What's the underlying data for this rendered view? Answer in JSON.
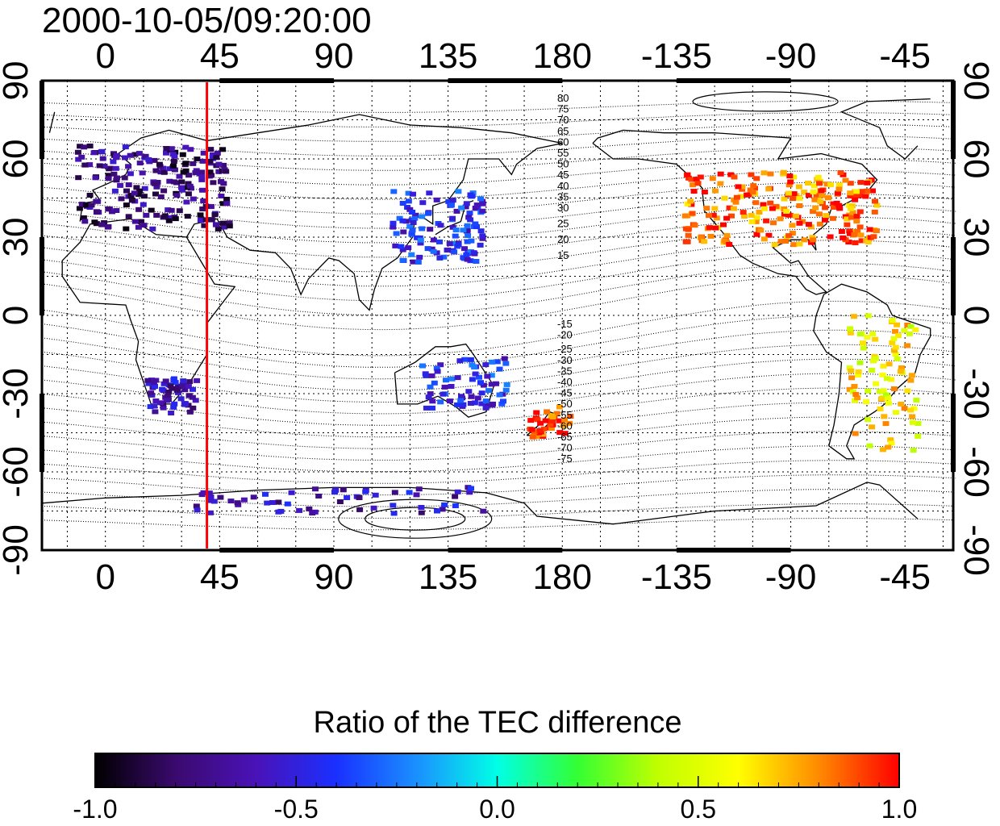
{
  "timestamp": "2000-10-05/09:20:00",
  "map": {
    "lon_ticks_top": [
      "0",
      "45",
      "90",
      "135",
      "180",
      "-135",
      "-90",
      "-45"
    ],
    "lon_ticks_bottom": [
      "0",
      "45",
      "90",
      "135",
      "180",
      "-135",
      "-90",
      "-45"
    ],
    "lat_ticks_left": [
      "90",
      "60",
      "30",
      "0",
      "-30",
      "-60",
      "-90"
    ],
    "lat_ticks_right": [
      "90",
      "60",
      "30",
      "0",
      "-30",
      "-60",
      "-90"
    ],
    "marker_longitude": 40,
    "marker_color": "#ff0000",
    "contour_labels_north": [
      "80",
      "75",
      "70",
      "65",
      "60",
      "55",
      "50",
      "45",
      "40",
      "35",
      "30",
      "25",
      "20",
      "15"
    ],
    "contour_labels_south": [
      "-15",
      "-20",
      "-25",
      "-30",
      "-35",
      "-40",
      "-45",
      "-50",
      "-55",
      "-60",
      "-65",
      "-70",
      "-75"
    ]
  },
  "colorbar": {
    "title": "Ratio of the TEC difference",
    "tick_labels": [
      "-1.0",
      "-0.5",
      "0.0",
      "0.5",
      "1.0"
    ],
    "min": -1.0,
    "max": 1.0,
    "colors": [
      "#000000",
      "#3a0a6e",
      "#4a12b8",
      "#1a30ff",
      "#1a90ff",
      "#00ffe6",
      "#33ff33",
      "#c0ff00",
      "#ffff00",
      "#ff8a00",
      "#ff0000"
    ]
  },
  "data_regions": [
    {
      "name": "europe",
      "lon": 18,
      "lat": 50,
      "value": -0.75
    },
    {
      "name": "north-america",
      "lon": -95,
      "lat": 42,
      "value": 0.85
    },
    {
      "name": "east-asia",
      "lon": 130,
      "lat": 35,
      "value": -0.45
    },
    {
      "name": "southern-africa",
      "lon": 25,
      "lat": -30,
      "value": -0.6
    },
    {
      "name": "australia",
      "lon": 140,
      "lat": -25,
      "value": -0.45
    },
    {
      "name": "new-zealand",
      "lon": 174,
      "lat": -40,
      "value": 0.9
    },
    {
      "name": "south-america",
      "lon": -55,
      "lat": -25,
      "value": 0.6
    },
    {
      "name": "antarctica",
      "lon": 90,
      "lat": -70,
      "value": -0.6
    }
  ]
}
